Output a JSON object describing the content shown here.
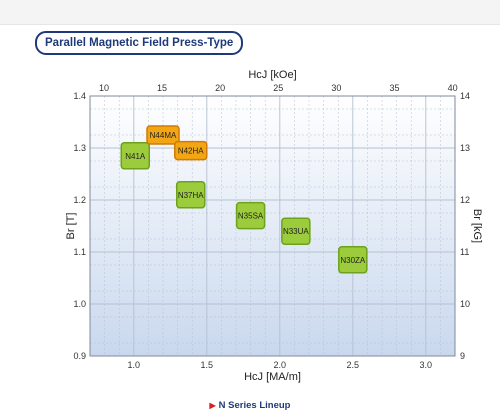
{
  "header": {
    "title": "Parallel Magnetic Field Press-Type"
  },
  "footer": {
    "label": "N Series Lineup"
  },
  "colors": {
    "grade_green": "#9ccc3c",
    "grade_green_border": "#6da21c",
    "grade_orange": "#f2a614",
    "grade_orange_border": "#d07a08",
    "plot_top": "#ffffff",
    "plot_bottom": "#c9d8ee",
    "grid": "#b5c0d2"
  },
  "chart_data": {
    "type": "scatter",
    "title": "",
    "xlabel": "HcJ [MA/m]",
    "ylabel": "Br [T]",
    "x2label": "HcJ [kOe]",
    "y2label": "Br [kG]",
    "xlim": [
      0.7,
      3.2
    ],
    "ylim": [
      0.9,
      1.4
    ],
    "x2lim": [
      8.8,
      40.2
    ],
    "y2lim": [
      9,
      14
    ],
    "x_ticks": [
      "1.0",
      "1.5",
      "2.0",
      "2.5",
      "3.0"
    ],
    "y_ticks": [
      "0.9",
      "1.0",
      "1.1",
      "1.2",
      "1.3",
      "1.4"
    ],
    "x2_ticks": [
      "10",
      "15",
      "20",
      "25",
      "30",
      "35",
      "40"
    ],
    "y2_ticks": [
      "9",
      "10",
      "11",
      "12",
      "13",
      "14"
    ],
    "grid": true,
    "points": [
      {
        "label": "N41A",
        "x": 1.01,
        "y": 1.285,
        "color": "green"
      },
      {
        "label": "N44MA",
        "x": 1.2,
        "y": 1.325,
        "color": "orange"
      },
      {
        "label": "N42HA",
        "x": 1.39,
        "y": 1.295,
        "color": "orange"
      },
      {
        "label": "N37HA",
        "x": 1.39,
        "y": 1.21,
        "color": "green"
      },
      {
        "label": "N35SA",
        "x": 1.8,
        "y": 1.17,
        "color": "green"
      },
      {
        "label": "N33UA",
        "x": 2.11,
        "y": 1.14,
        "color": "green"
      },
      {
        "label": "N30ZA",
        "x": 2.5,
        "y": 1.085,
        "color": "green"
      }
    ]
  }
}
